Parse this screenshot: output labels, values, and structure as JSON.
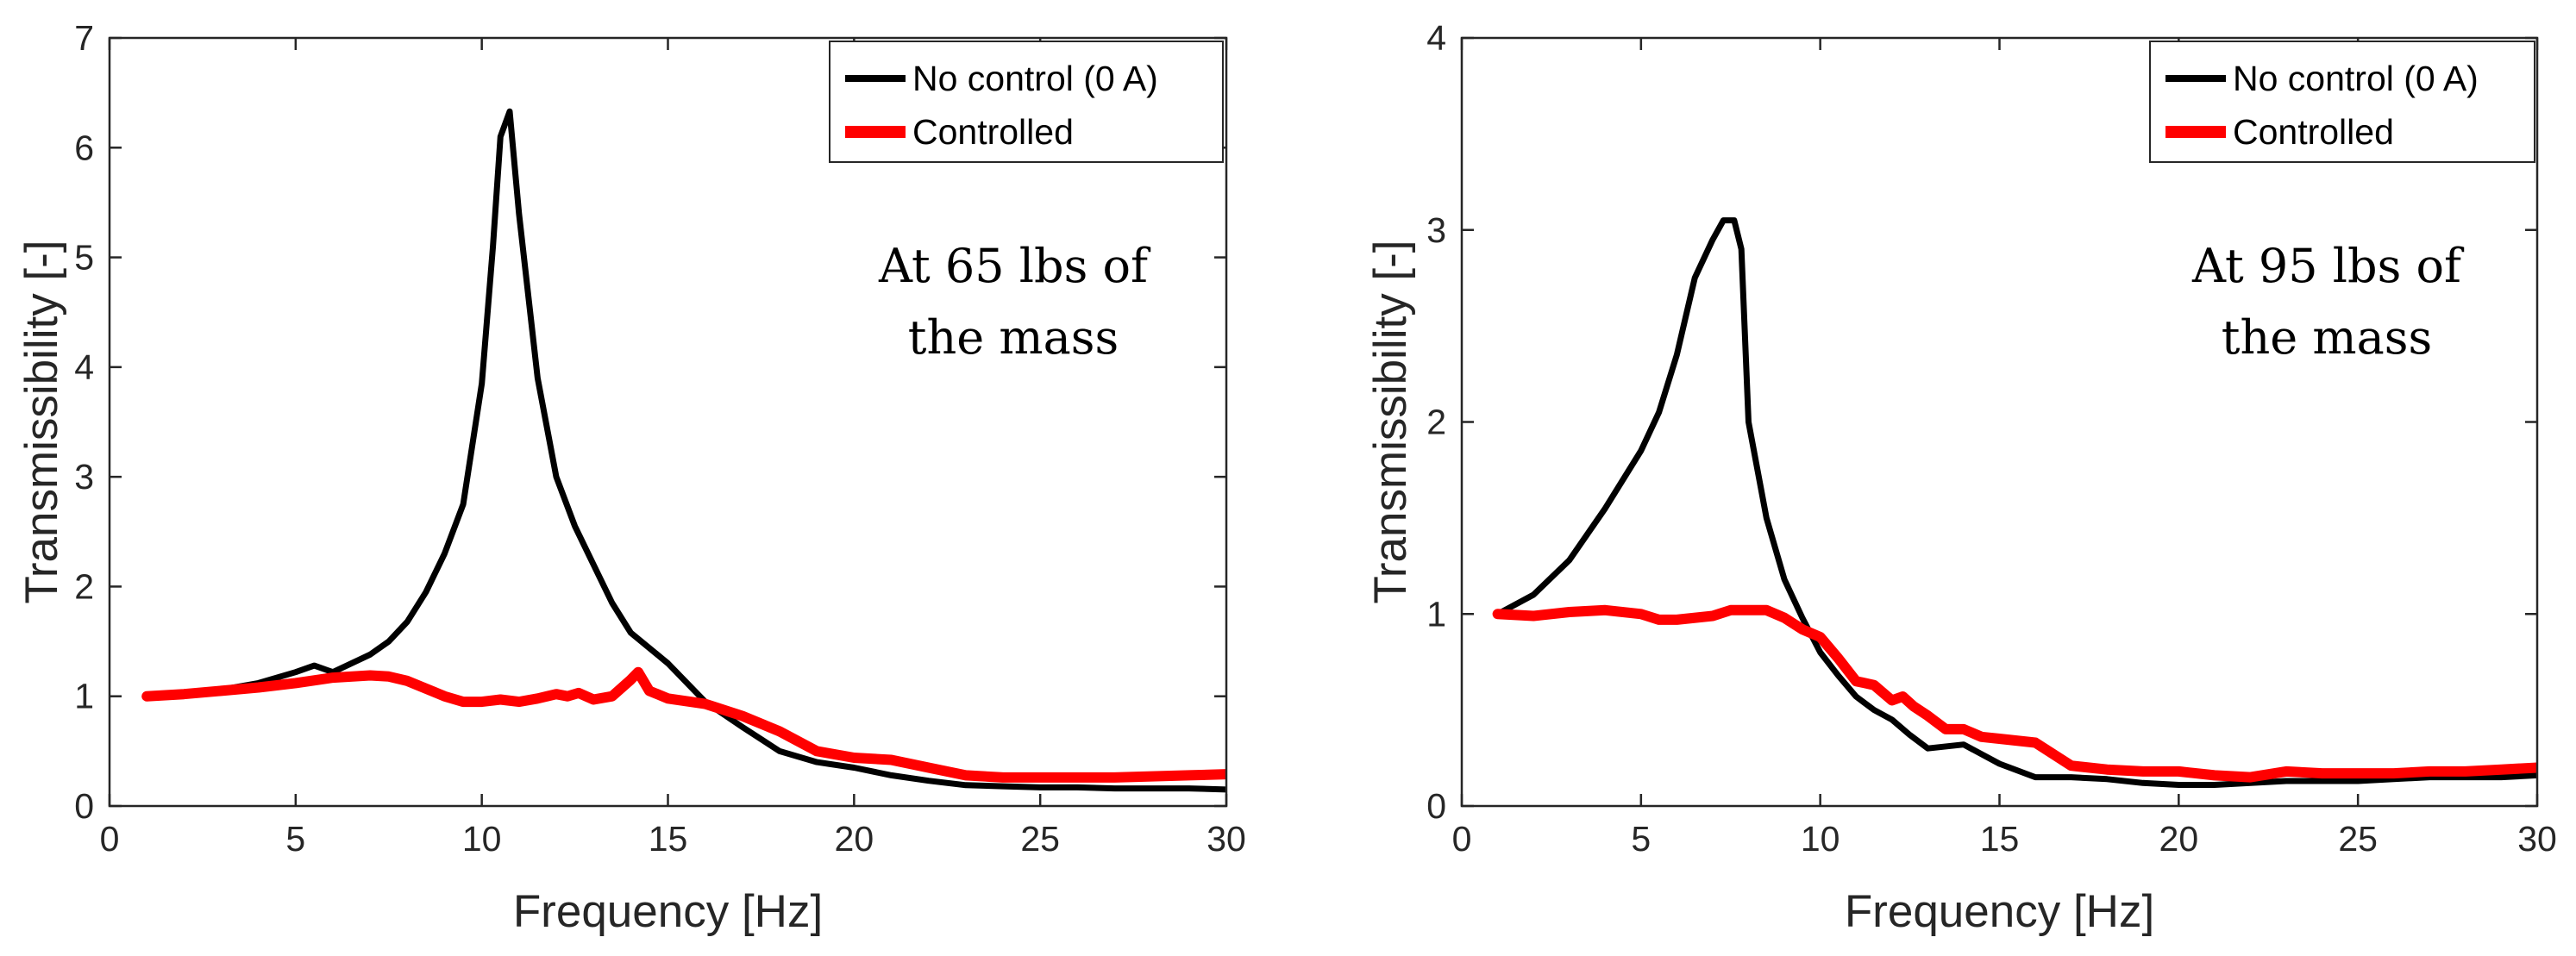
{
  "colors": {
    "no_control": "#000000",
    "controlled": "#ff0000",
    "axis": "#262626"
  },
  "chart_data": [
    {
      "type": "line",
      "xlabel": "Frequency [Hz]",
      "ylabel": "Transmissibility [-]",
      "xlim": [
        0,
        30
      ],
      "ylim": [
        0,
        7
      ],
      "xticks": [
        0,
        5,
        10,
        15,
        20,
        25,
        30
      ],
      "yticks": [
        0,
        1,
        2,
        3,
        4,
        5,
        6,
        7
      ],
      "legend_position": "top-right",
      "annotation": [
        "At 65 lbs of",
        "the mass"
      ],
      "series": [
        {
          "name": "No control (0 A)",
          "color": "#000000",
          "x": [
            1,
            2,
            3,
            4,
            5,
            5.5,
            6,
            7,
            7.5,
            8,
            8.5,
            9,
            9.5,
            10,
            10.3,
            10.5,
            10.75,
            11,
            11.5,
            12,
            12.5,
            13,
            13.5,
            14,
            15,
            16,
            17,
            18,
            19,
            20,
            21,
            22,
            23,
            24,
            25,
            26,
            27,
            28,
            29,
            30
          ],
          "y": [
            1.0,
            1.02,
            1.06,
            1.12,
            1.22,
            1.28,
            1.22,
            1.38,
            1.5,
            1.68,
            1.95,
            2.3,
            2.75,
            3.85,
            5.1,
            6.1,
            6.33,
            5.4,
            3.9,
            3.0,
            2.55,
            2.2,
            1.85,
            1.58,
            1.3,
            0.95,
            0.72,
            0.5,
            0.4,
            0.35,
            0.28,
            0.23,
            0.19,
            0.18,
            0.17,
            0.17,
            0.16,
            0.16,
            0.16,
            0.15
          ]
        },
        {
          "name": "Controlled",
          "color": "#ff0000",
          "x": [
            1,
            2,
            3,
            4,
            5,
            6,
            7,
            7.5,
            8,
            9,
            9.5,
            10,
            10.5,
            11,
            11.5,
            12,
            12.3,
            12.6,
            13,
            13.5,
            14,
            14.2,
            14.5,
            15,
            16,
            17,
            18,
            19,
            20,
            21,
            22,
            23,
            24,
            25,
            26,
            27,
            28,
            29,
            30
          ],
          "y": [
            1.0,
            1.02,
            1.05,
            1.08,
            1.12,
            1.17,
            1.19,
            1.18,
            1.14,
            1.0,
            0.95,
            0.95,
            0.97,
            0.95,
            0.98,
            1.02,
            1.0,
            1.03,
            0.97,
            1.0,
            1.15,
            1.22,
            1.05,
            0.98,
            0.93,
            0.82,
            0.68,
            0.5,
            0.44,
            0.42,
            0.35,
            0.28,
            0.26,
            0.26,
            0.26,
            0.26,
            0.27,
            0.28,
            0.29
          ]
        }
      ]
    },
    {
      "type": "line",
      "xlabel": "Frequency [Hz]",
      "ylabel": "Transmissibility [-]",
      "xlim": [
        0,
        30
      ],
      "ylim": [
        0,
        4
      ],
      "xticks": [
        0,
        5,
        10,
        15,
        20,
        25,
        30
      ],
      "yticks": [
        0,
        1,
        2,
        3,
        4
      ],
      "legend_position": "top-right",
      "annotation": [
        "At 95 lbs of",
        "the mass"
      ],
      "series": [
        {
          "name": "No control (0 A)",
          "color": "#000000",
          "x": [
            1,
            2,
            3,
            4,
            5,
            5.5,
            6,
            6.5,
            7,
            7.3,
            7.6,
            7.8,
            8,
            8.5,
            9,
            9.5,
            10,
            10.5,
            11,
            11.5,
            12,
            12.5,
            13,
            14,
            15,
            16,
            17,
            18,
            19,
            20,
            21,
            22,
            23,
            24,
            25,
            26,
            27,
            28,
            29,
            30
          ],
          "y": [
            1.0,
            1.1,
            1.28,
            1.55,
            1.85,
            2.05,
            2.35,
            2.75,
            2.95,
            3.05,
            3.05,
            2.9,
            2.0,
            1.5,
            1.18,
            0.98,
            0.8,
            0.68,
            0.57,
            0.5,
            0.45,
            0.37,
            0.3,
            0.32,
            0.22,
            0.15,
            0.15,
            0.14,
            0.12,
            0.11,
            0.11,
            0.12,
            0.13,
            0.13,
            0.13,
            0.14,
            0.15,
            0.15,
            0.15,
            0.16
          ]
        },
        {
          "name": "Controlled",
          "color": "#ff0000",
          "x": [
            1,
            2,
            3,
            4,
            5,
            5.5,
            6,
            7,
            7.5,
            8,
            8.5,
            9,
            9.5,
            10,
            10.5,
            11,
            11.5,
            12,
            12.3,
            12.6,
            13,
            13.5,
            14,
            14.5,
            15,
            16,
            17,
            18,
            19,
            20,
            21,
            22,
            23,
            24,
            25,
            26,
            27,
            28,
            29,
            30
          ],
          "y": [
            1.0,
            0.99,
            1.01,
            1.02,
            1.0,
            0.97,
            0.97,
            0.99,
            1.02,
            1.02,
            1.02,
            0.98,
            0.92,
            0.88,
            0.77,
            0.65,
            0.63,
            0.55,
            0.57,
            0.52,
            0.47,
            0.4,
            0.4,
            0.36,
            0.35,
            0.33,
            0.21,
            0.19,
            0.18,
            0.18,
            0.16,
            0.15,
            0.18,
            0.17,
            0.17,
            0.17,
            0.18,
            0.18,
            0.19,
            0.2
          ]
        }
      ]
    }
  ]
}
